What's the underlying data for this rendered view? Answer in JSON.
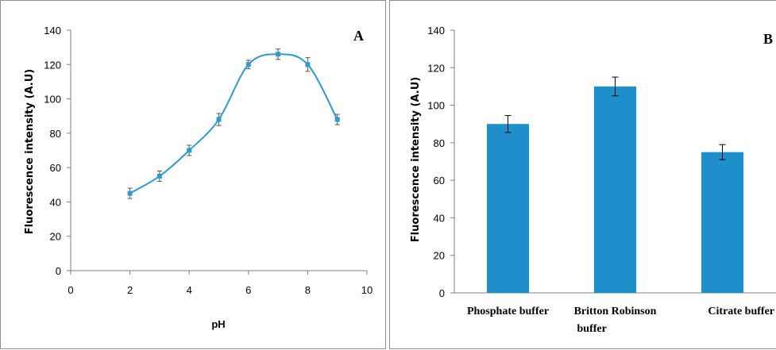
{
  "chart_data": [
    {
      "panel_label": "A",
      "type": "line",
      "smooth": true,
      "xlabel": "pH",
      "ylabel": "Fluorescence intensity (A.U)",
      "xlim": [
        0,
        10
      ],
      "ylim": [
        0,
        140
      ],
      "xticks": [
        "0",
        "2",
        "4",
        "6",
        "8",
        "10"
      ],
      "yticks": [
        "0",
        "20",
        "40",
        "60",
        "80",
        "100",
        "120",
        "140"
      ],
      "grid": false,
      "color": "#2e9ad0",
      "series": [
        {
          "x": [
            2,
            3,
            4,
            5,
            6,
            7,
            8,
            9
          ],
          "values": [
            45,
            55,
            70,
            88,
            120,
            126,
            120,
            88
          ],
          "errors": [
            3,
            3,
            3,
            3.5,
            2.5,
            3,
            4,
            3
          ]
        }
      ]
    },
    {
      "panel_label": "B",
      "type": "bar",
      "ylabel": "Fluorescence intensity (A.U)",
      "ylim": [
        0,
        140
      ],
      "yticks": [
        "0",
        "20",
        "40",
        "60",
        "80",
        "100",
        "120",
        "140"
      ],
      "grid": false,
      "color": "#1f8fcb",
      "categories": [
        [
          "Phosphate buffer"
        ],
        [
          "Britton Robinson",
          "buffer"
        ],
        [
          "Citrate buffer"
        ]
      ],
      "values": [
        90,
        110,
        75
      ],
      "errors": [
        4.5,
        5,
        4
      ]
    }
  ]
}
